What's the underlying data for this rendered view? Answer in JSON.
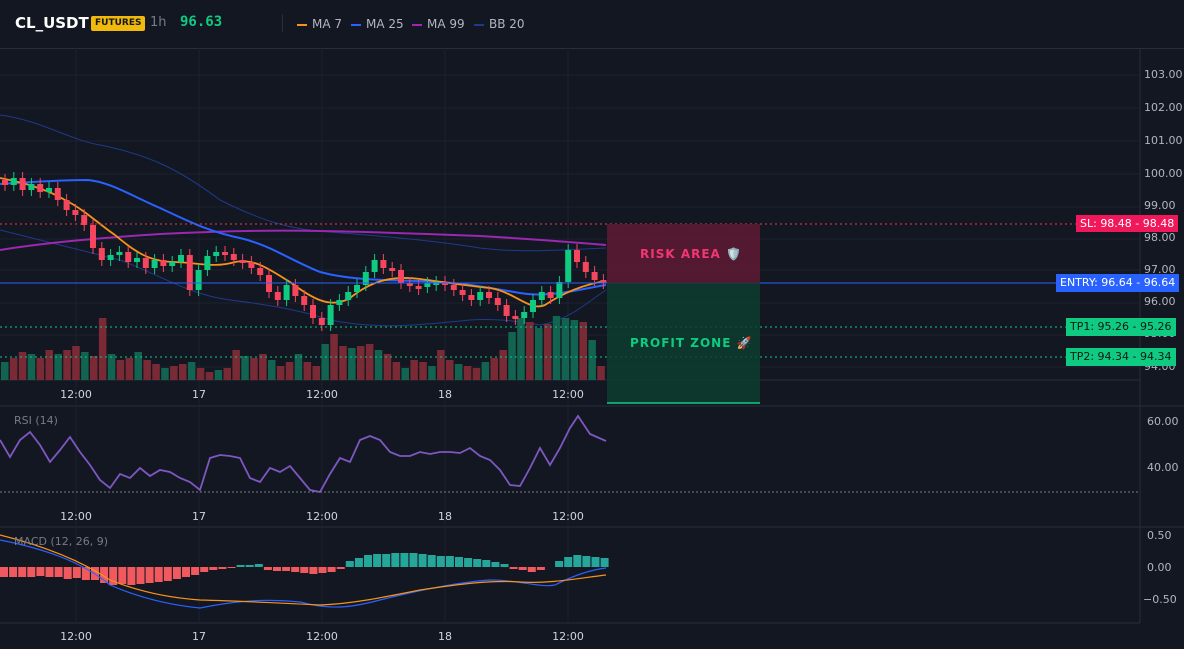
{
  "header": {
    "symbol": "CL_USDT",
    "badge": "FUTURES",
    "timeframe": "1h",
    "price": "96.63",
    "legend": [
      {
        "label": "MA 7",
        "color": "#f7931a"
      },
      {
        "label": "MA 25",
        "color": "#2962ff"
      },
      {
        "label": "MA 99",
        "color": "#9c27b0"
      },
      {
        "label": "BB 20",
        "color": "#1e3a8a"
      }
    ]
  },
  "price_axis": [
    "103.00",
    "102.00",
    "101.00",
    "100.00",
    "99.00",
    "98.00",
    "97.00",
    "96.00",
    "95.00",
    "94.00"
  ],
  "time_axis": [
    "12:00",
    "17",
    "12:00",
    "18",
    "12:00"
  ],
  "levels": {
    "sl": {
      "label": "SL: 98.48",
      "value": "98.48",
      "price": 98.48,
      "color": "#f23645"
    },
    "entry": {
      "label": "ENTRY: 96.64",
      "value": "96.64",
      "price": 96.64,
      "color": "#2962ff"
    },
    "tp1": {
      "label": "TP1: 95.26",
      "value": "95.26",
      "price": 95.26,
      "color": "#0ecb81"
    },
    "tp2": {
      "label": "TP2: 94.34",
      "value": "94.34",
      "price": 94.34,
      "color": "#0ecb81"
    }
  },
  "zones": {
    "risk": "RISK AREA 🛡️",
    "profit": "PROFIT ZONE 🚀"
  },
  "rsi": {
    "label": "RSI (14)",
    "axis": [
      "60.00",
      "40.00"
    ]
  },
  "macd": {
    "label": "MACD (12, 26, 9)",
    "axis": [
      "0.50",
      "0.00",
      "−0.50"
    ]
  },
  "colors": {
    "up": "#0ecb81",
    "down": "#f6465d",
    "bg": "#131722",
    "grid": "#1e222d"
  }
}
